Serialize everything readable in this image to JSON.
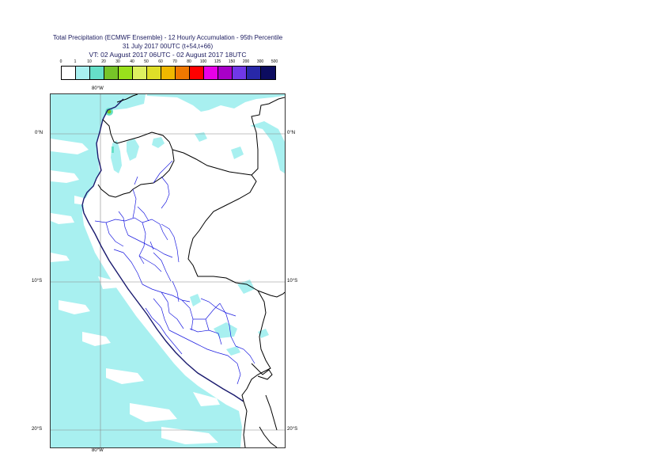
{
  "title": {
    "line1": "Total Precipitation (ECMWF Ensemble) - 12 Hourly Accumulation - 95th Percentile",
    "line2": "31 July 2017 00UTC (t+54,t+66)",
    "line3": "VT: 02 August 2017 06UTC - 02 August 2017 18UTC"
  },
  "legend": {
    "ticks": [
      "0",
      "1",
      "10",
      "20",
      "30",
      "40",
      "50",
      "60",
      "70",
      "80",
      "100",
      "125",
      "150",
      "200",
      "300",
      "500"
    ],
    "colors": [
      "#ffffff",
      "#a8f0f0",
      "#66e0c8",
      "#77c428",
      "#99e01c",
      "#ddf060",
      "#dede28",
      "#f0b800",
      "#f07800",
      "#ff0000",
      "#e800e8",
      "#a800c8",
      "#7038e8",
      "#2828a8",
      "#0c0c60"
    ]
  },
  "axes": {
    "lon_top": "80°W",
    "lon_bottom": "80°W",
    "lat_left": [
      "0°N",
      "10°S",
      "20°S"
    ],
    "lat_right": [
      "0°N",
      "10°S",
      "20°S"
    ]
  }
}
